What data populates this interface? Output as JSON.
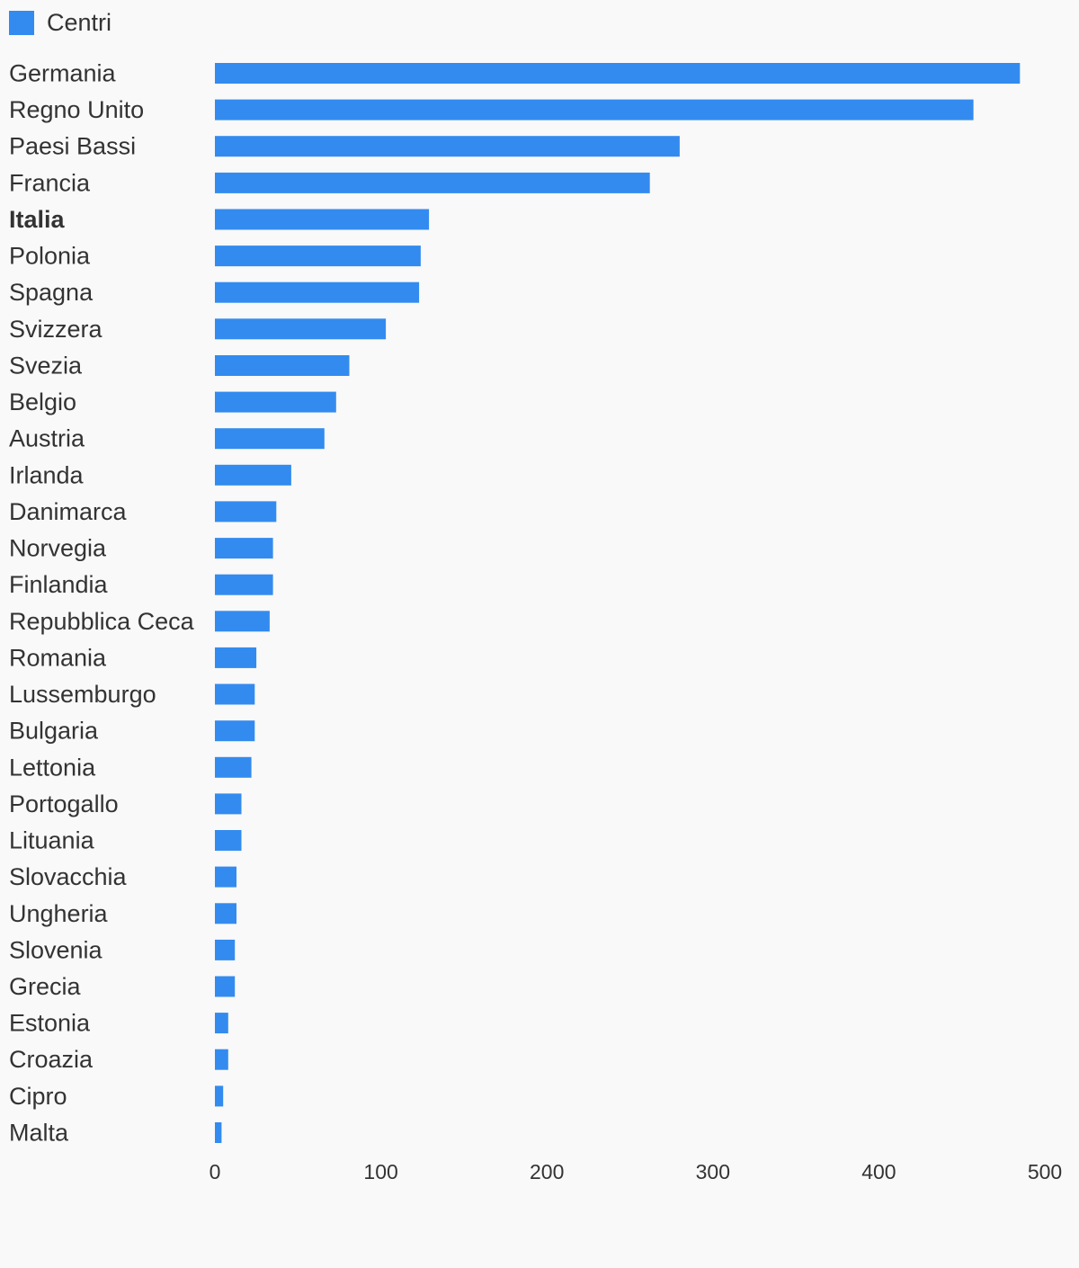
{
  "colors": {
    "background": "#f9f9f9",
    "bar": "#338bef",
    "text": "#333333"
  },
  "chart_data": {
    "type": "bar",
    "orientation": "horizontal",
    "legend": {
      "position": "top-left"
    },
    "grid": false,
    "xlim": [
      0,
      500
    ],
    "x_ticks": [
      "0",
      "100",
      "200",
      "300",
      "400",
      "500"
    ],
    "highlight": "Italia",
    "categories": [
      "Germania",
      "Regno Unito",
      "Paesi Bassi",
      "Francia",
      "Italia",
      "Polonia",
      "Spagna",
      "Svizzera",
      "Svezia",
      "Belgio",
      "Austria",
      "Irlanda",
      "Danimarca",
      "Norvegia",
      "Finlandia",
      "Repubblica Ceca",
      "Romania",
      "Lussemburgo",
      "Bulgaria",
      "Lettonia",
      "Portogallo",
      "Lituania",
      "Slovacchia",
      "Ungheria",
      "Slovenia",
      "Grecia",
      "Estonia",
      "Croazia",
      "Cipro",
      "Malta"
    ],
    "series": [
      {
        "name": "Centri",
        "color": "#338bef",
        "values": [
          485,
          457,
          280,
          262,
          129,
          124,
          123,
          103,
          81,
          73,
          66,
          46,
          37,
          35,
          35,
          33,
          25,
          24,
          24,
          22,
          16,
          16,
          13,
          13,
          12,
          12,
          8,
          8,
          5,
          4
        ]
      }
    ]
  }
}
